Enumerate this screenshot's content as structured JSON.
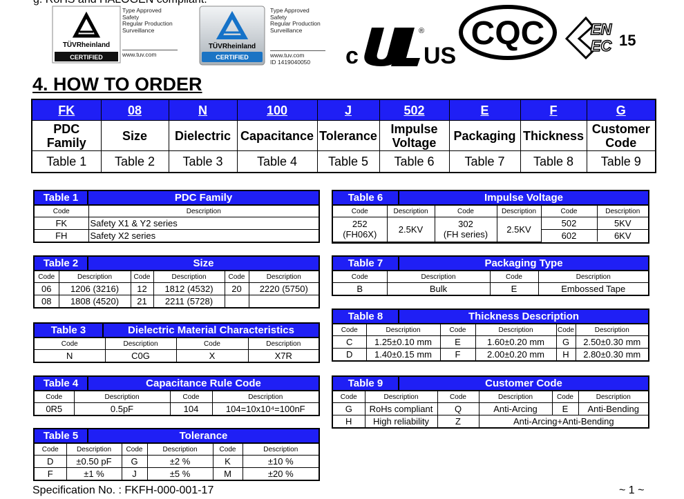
{
  "top_note": "g.   RoHS and HALOGEN compliant.",
  "certifications": [
    {
      "approval": [
        "Type Approved",
        "Safety",
        "Regular Production",
        "Surveillance"
      ],
      "brand": "TÜVRheinland",
      "badge": "CERTIFIED",
      "url": "www.tuv.com"
    },
    {
      "approval": [
        "Type Approved",
        "Safety",
        "Regular Production",
        "Surveillance"
      ],
      "brand": "TÜVRheinland",
      "badge": "CERTIFIED",
      "url": "www.tuv.com",
      "id": "ID 1419040050"
    }
  ],
  "ul_mark": {
    "left": "c",
    "right": "US"
  },
  "cqc_mark": "CQC",
  "enec_mark": {
    "letters": [
      "EN",
      "EC"
    ],
    "number": "15"
  },
  "section_title": "4. HOW TO ORDER",
  "order_table": {
    "codes": [
      "FK",
      "08",
      "N",
      "100",
      "J",
      "502",
      "E",
      "F",
      "G"
    ],
    "names": [
      "PDC Family",
      "Size",
      "Dielectric",
      "Capacitance",
      "Tolerance",
      "Impulse Voltage",
      "Packaging",
      "Thickness",
      "Customer Code"
    ],
    "tables": [
      "Table 1",
      "Table 2",
      "Table 3",
      "Table 4",
      "Table 5",
      "Table 6",
      "Table 7",
      "Table 8",
      "Table 9"
    ]
  },
  "table1": {
    "label": "Table 1",
    "title": "PDC Family",
    "header": [
      "Code",
      "Description"
    ],
    "rows": [
      [
        "FK",
        "Safety X1 & Y2 series"
      ],
      [
        "FH",
        "Safety X2 series"
      ]
    ]
  },
  "table2": {
    "label": "Table 2",
    "title": "Size",
    "header": [
      "Code",
      "Description",
      "Code",
      "Description",
      "Code",
      "Description"
    ],
    "rows": [
      [
        "06",
        "1206 (3216)",
        "12",
        "1812 (4532)",
        "20",
        "2220 (5750)"
      ],
      [
        "08",
        "1808 (4520)",
        "21",
        "2211 (5728)"
      ]
    ]
  },
  "table3": {
    "label": "Table 3",
    "title": "Dielectric Material Characteristics",
    "header": [
      "Code",
      "Description",
      "Code",
      "Description"
    ],
    "rows": [
      [
        "N",
        "C0G",
        "X",
        "X7R"
      ]
    ]
  },
  "table4": {
    "label": "Table 4",
    "title": "Capacitance Rule Code",
    "header": [
      "Code",
      "Description",
      "Code",
      "Description"
    ],
    "rows": [
      [
        "0R5",
        "0.5pF",
        "104",
        "104=10x10⁴=100nF"
      ]
    ]
  },
  "table5": {
    "label": "Table 5",
    "title": "Tolerance",
    "header": [
      "Code",
      "Description",
      "Code",
      "Description",
      "Code",
      "Description"
    ],
    "rows": [
      [
        "D",
        "±0.50 pF",
        "G",
        "±2 %",
        "K",
        "±10 %"
      ],
      [
        "F",
        "±1 %",
        "J",
        "±5 %",
        "M",
        "±20 %"
      ]
    ]
  },
  "table6": {
    "label": "Table 6",
    "title": "Impulse Voltage",
    "header": [
      "Code",
      "Description",
      "Code",
      "Description",
      "Code",
      "Description"
    ],
    "merged": [
      [
        "252",
        "(FH06X)"
      ],
      "2.5KV",
      [
        "302",
        "(FH series)"
      ],
      "2.5KV"
    ],
    "rows": [
      [
        "502",
        "5KV"
      ],
      [
        "602",
        "6KV"
      ]
    ]
  },
  "table7": {
    "label": "Table 7",
    "title": "Packaging Type",
    "header": [
      "Code",
      "Description",
      "Code",
      "Description"
    ],
    "rows": [
      [
        "B",
        "Bulk",
        "E",
        "Embossed Tape"
      ]
    ]
  },
  "table8": {
    "label": "Table 8",
    "title": "Thickness Description",
    "header": [
      "Code",
      "Description",
      "Code",
      "Description",
      "Code",
      "Description"
    ],
    "rows": [
      [
        "C",
        "1.25±0.10 mm",
        "E",
        "1.60±0.20 mm",
        "G",
        "2.50±0.30 mm"
      ],
      [
        "D",
        "1.40±0.15 mm",
        "F",
        "2.00±0.20 mm",
        "H",
        "2.80±0.30 mm"
      ]
    ]
  },
  "table9": {
    "label": "Table 9",
    "title": "Customer Code",
    "header": [
      "Code",
      "Description",
      "Code",
      "Description",
      "Code",
      "Description"
    ],
    "rows": [
      [
        "G",
        "RoHs compliant",
        "Q",
        "Anti-Arcing",
        "E",
        "Anti-Bending"
      ],
      [
        "H",
        "High reliability",
        "Z",
        "Anti-Arcing+Anti-Bending"
      ]
    ]
  },
  "footer": {
    "spec": "Specification No. : FKFH-000-001-17",
    "page": "~ 1 ~"
  }
}
